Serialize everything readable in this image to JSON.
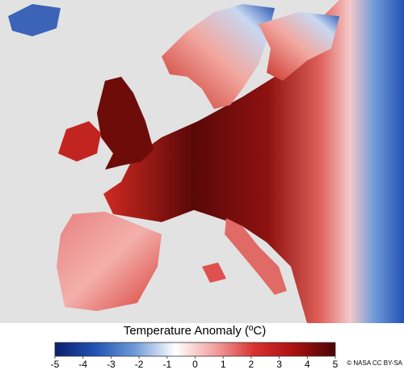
{
  "map": {
    "colorbar": {
      "title": "Temperature Anomaly (ºC)",
      "range": [
        -5,
        5
      ],
      "ticks": [
        -5,
        -4,
        -3,
        -2,
        -1,
        0,
        1,
        2,
        3,
        4,
        5
      ],
      "colors": [
        "#0a1f6e",
        "#2352b4",
        "#6f9bd8",
        "#ffffff",
        "#f2a0a0",
        "#d83030",
        "#a81010",
        "#4a0606"
      ]
    },
    "credit": "© NASA CC BY-SA"
  }
}
